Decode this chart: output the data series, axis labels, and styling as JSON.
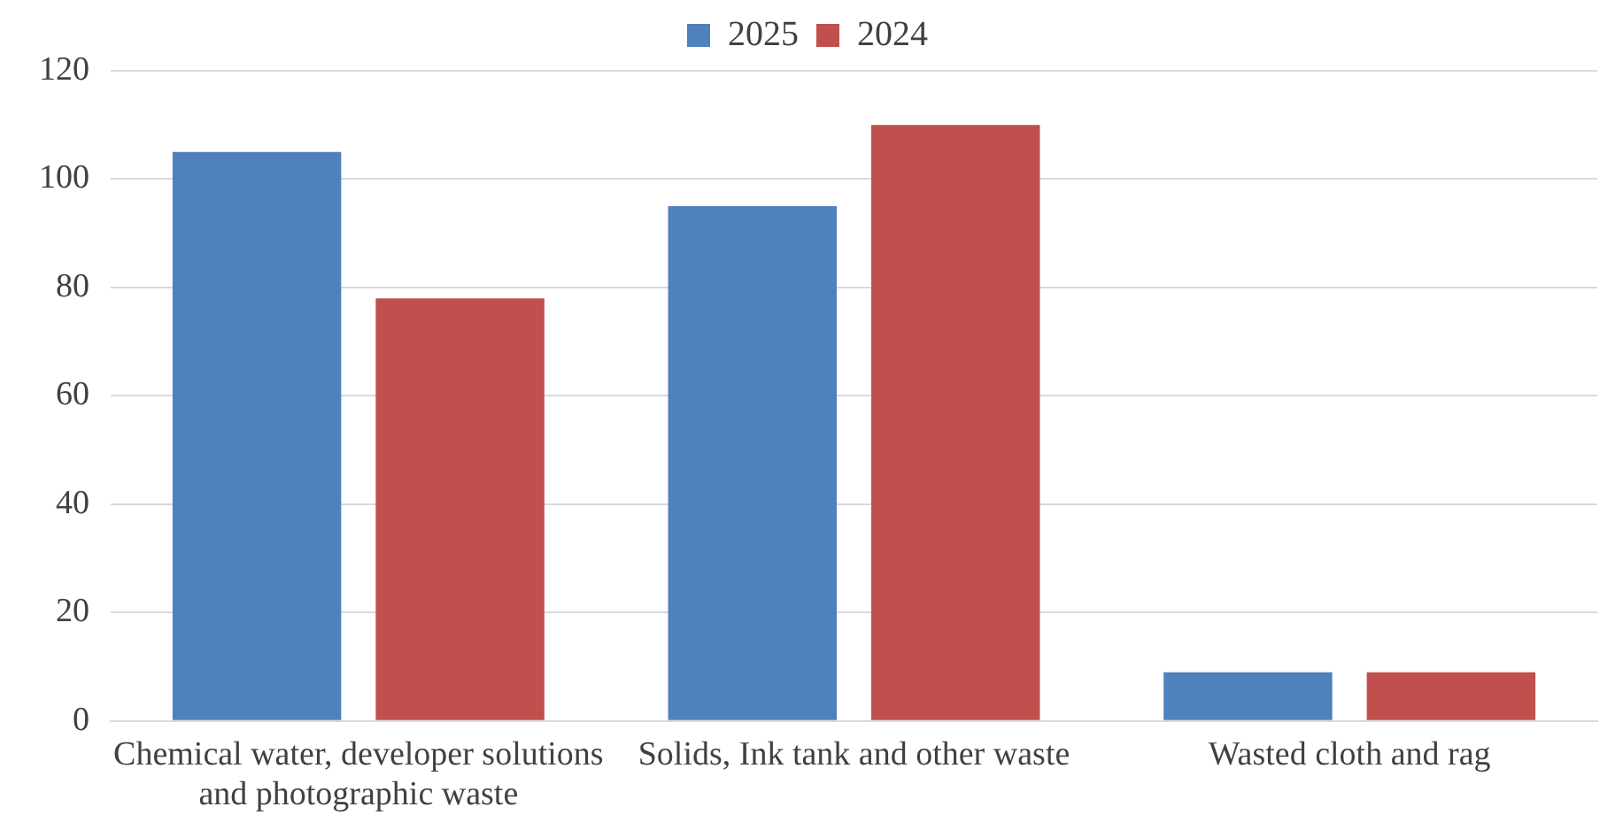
{
  "chart_data": {
    "type": "bar",
    "categories": [
      "Chemical water, developer solutions and photographic waste",
      "Solids, Ink tank and other waste",
      "Wasted cloth and rag"
    ],
    "series": [
      {
        "name": "2025",
        "color": "#4f81bd",
        "values": [
          105,
          95,
          9
        ]
      },
      {
        "name": "2024",
        "color": "#c0504d",
        "values": [
          78,
          110,
          9
        ]
      }
    ],
    "ylim": [
      0,
      120
    ],
    "yticks": [
      0,
      20,
      40,
      60,
      80,
      100,
      120
    ],
    "grid": "y",
    "legend": "top"
  }
}
